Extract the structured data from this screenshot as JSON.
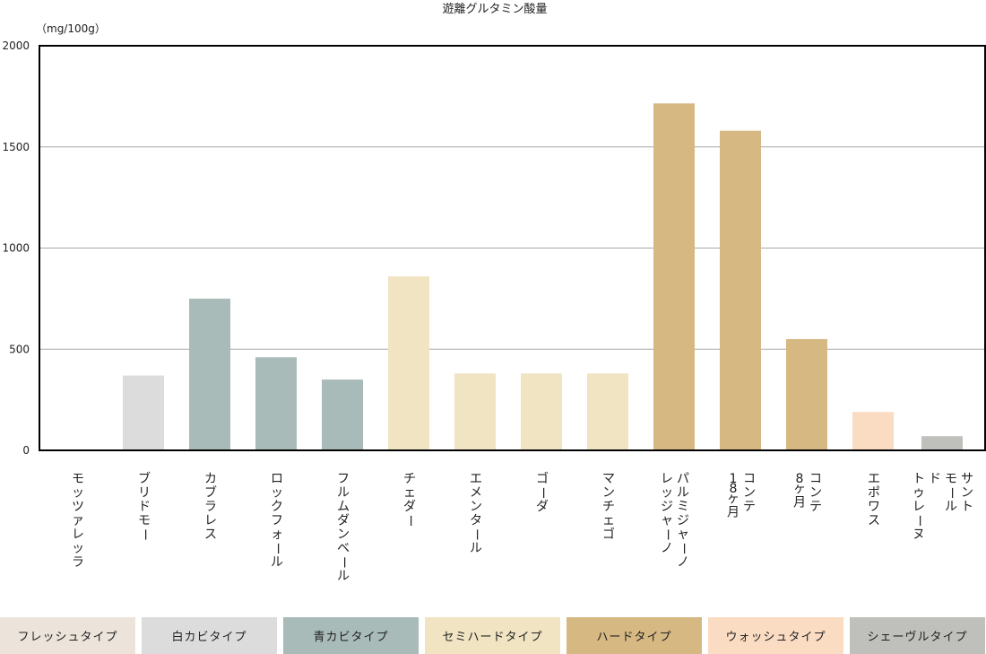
{
  "chart_data": {
    "type": "bar",
    "title": "遊離グルタミン酸量",
    "unit_label": "（mg/100g）",
    "ylim": [
      0,
      2000
    ],
    "yticks": [
      "0",
      "500",
      "1000",
      "1500",
      "2000"
    ],
    "grid": true,
    "categories": [
      {
        "lines": [
          "モッツァレッラ"
        ],
        "value": 0,
        "type": "fresh"
      },
      {
        "lines": [
          "ブリドモー"
        ],
        "value": 370,
        "type": "white"
      },
      {
        "lines": [
          "カブラレス"
        ],
        "value": 750,
        "type": "blue"
      },
      {
        "lines": [
          "ロックフォール"
        ],
        "value": 460,
        "type": "blue"
      },
      {
        "lines": [
          "フルムダンベール"
        ],
        "value": 350,
        "type": "blue"
      },
      {
        "lines": [
          "チェダー"
        ],
        "value": 860,
        "type": "semihard"
      },
      {
        "lines": [
          "エメンタール"
        ],
        "value": 380,
        "type": "semihard"
      },
      {
        "lines": [
          "ゴーダ"
        ],
        "value": 380,
        "type": "semihard"
      },
      {
        "lines": [
          "マンチェゴ"
        ],
        "value": 380,
        "type": "semihard"
      },
      {
        "lines": [
          "パルミジャーノ",
          "レッジャーノ"
        ],
        "value": 1715,
        "type": "hard"
      },
      {
        "lines": [
          "コンテ",
          "18ヶ月"
        ],
        "value": 1580,
        "type": "hard"
      },
      {
        "lines": [
          "コンテ",
          "8ヶ月"
        ],
        "value": 550,
        "type": "hard"
      },
      {
        "lines": [
          "エポワス"
        ],
        "value": 190,
        "type": "washed"
      },
      {
        "lines": [
          "サント",
          "モール",
          "ド",
          "トゥレーヌ"
        ],
        "value": 70,
        "type": "chevre"
      }
    ]
  },
  "legend": [
    {
      "key": "fresh",
      "label": "フレッシュタイプ",
      "color": "#ece4da"
    },
    {
      "key": "white",
      "label": "白カビタイプ",
      "color": "#dcdcdc"
    },
    {
      "key": "blue",
      "label": "青カビタイプ",
      "color": "#a8bbb8"
    },
    {
      "key": "semihard",
      "label": "セミハードタイプ",
      "color": "#f0e4c2"
    },
    {
      "key": "hard",
      "label": "ハードタイプ",
      "color": "#d6b882"
    },
    {
      "key": "washed",
      "label": "ウォッシュタイプ",
      "color": "#fadcc3"
    },
    {
      "key": "chevre",
      "label": "シェーヴルタイプ",
      "color": "#bfc0bb"
    }
  ]
}
